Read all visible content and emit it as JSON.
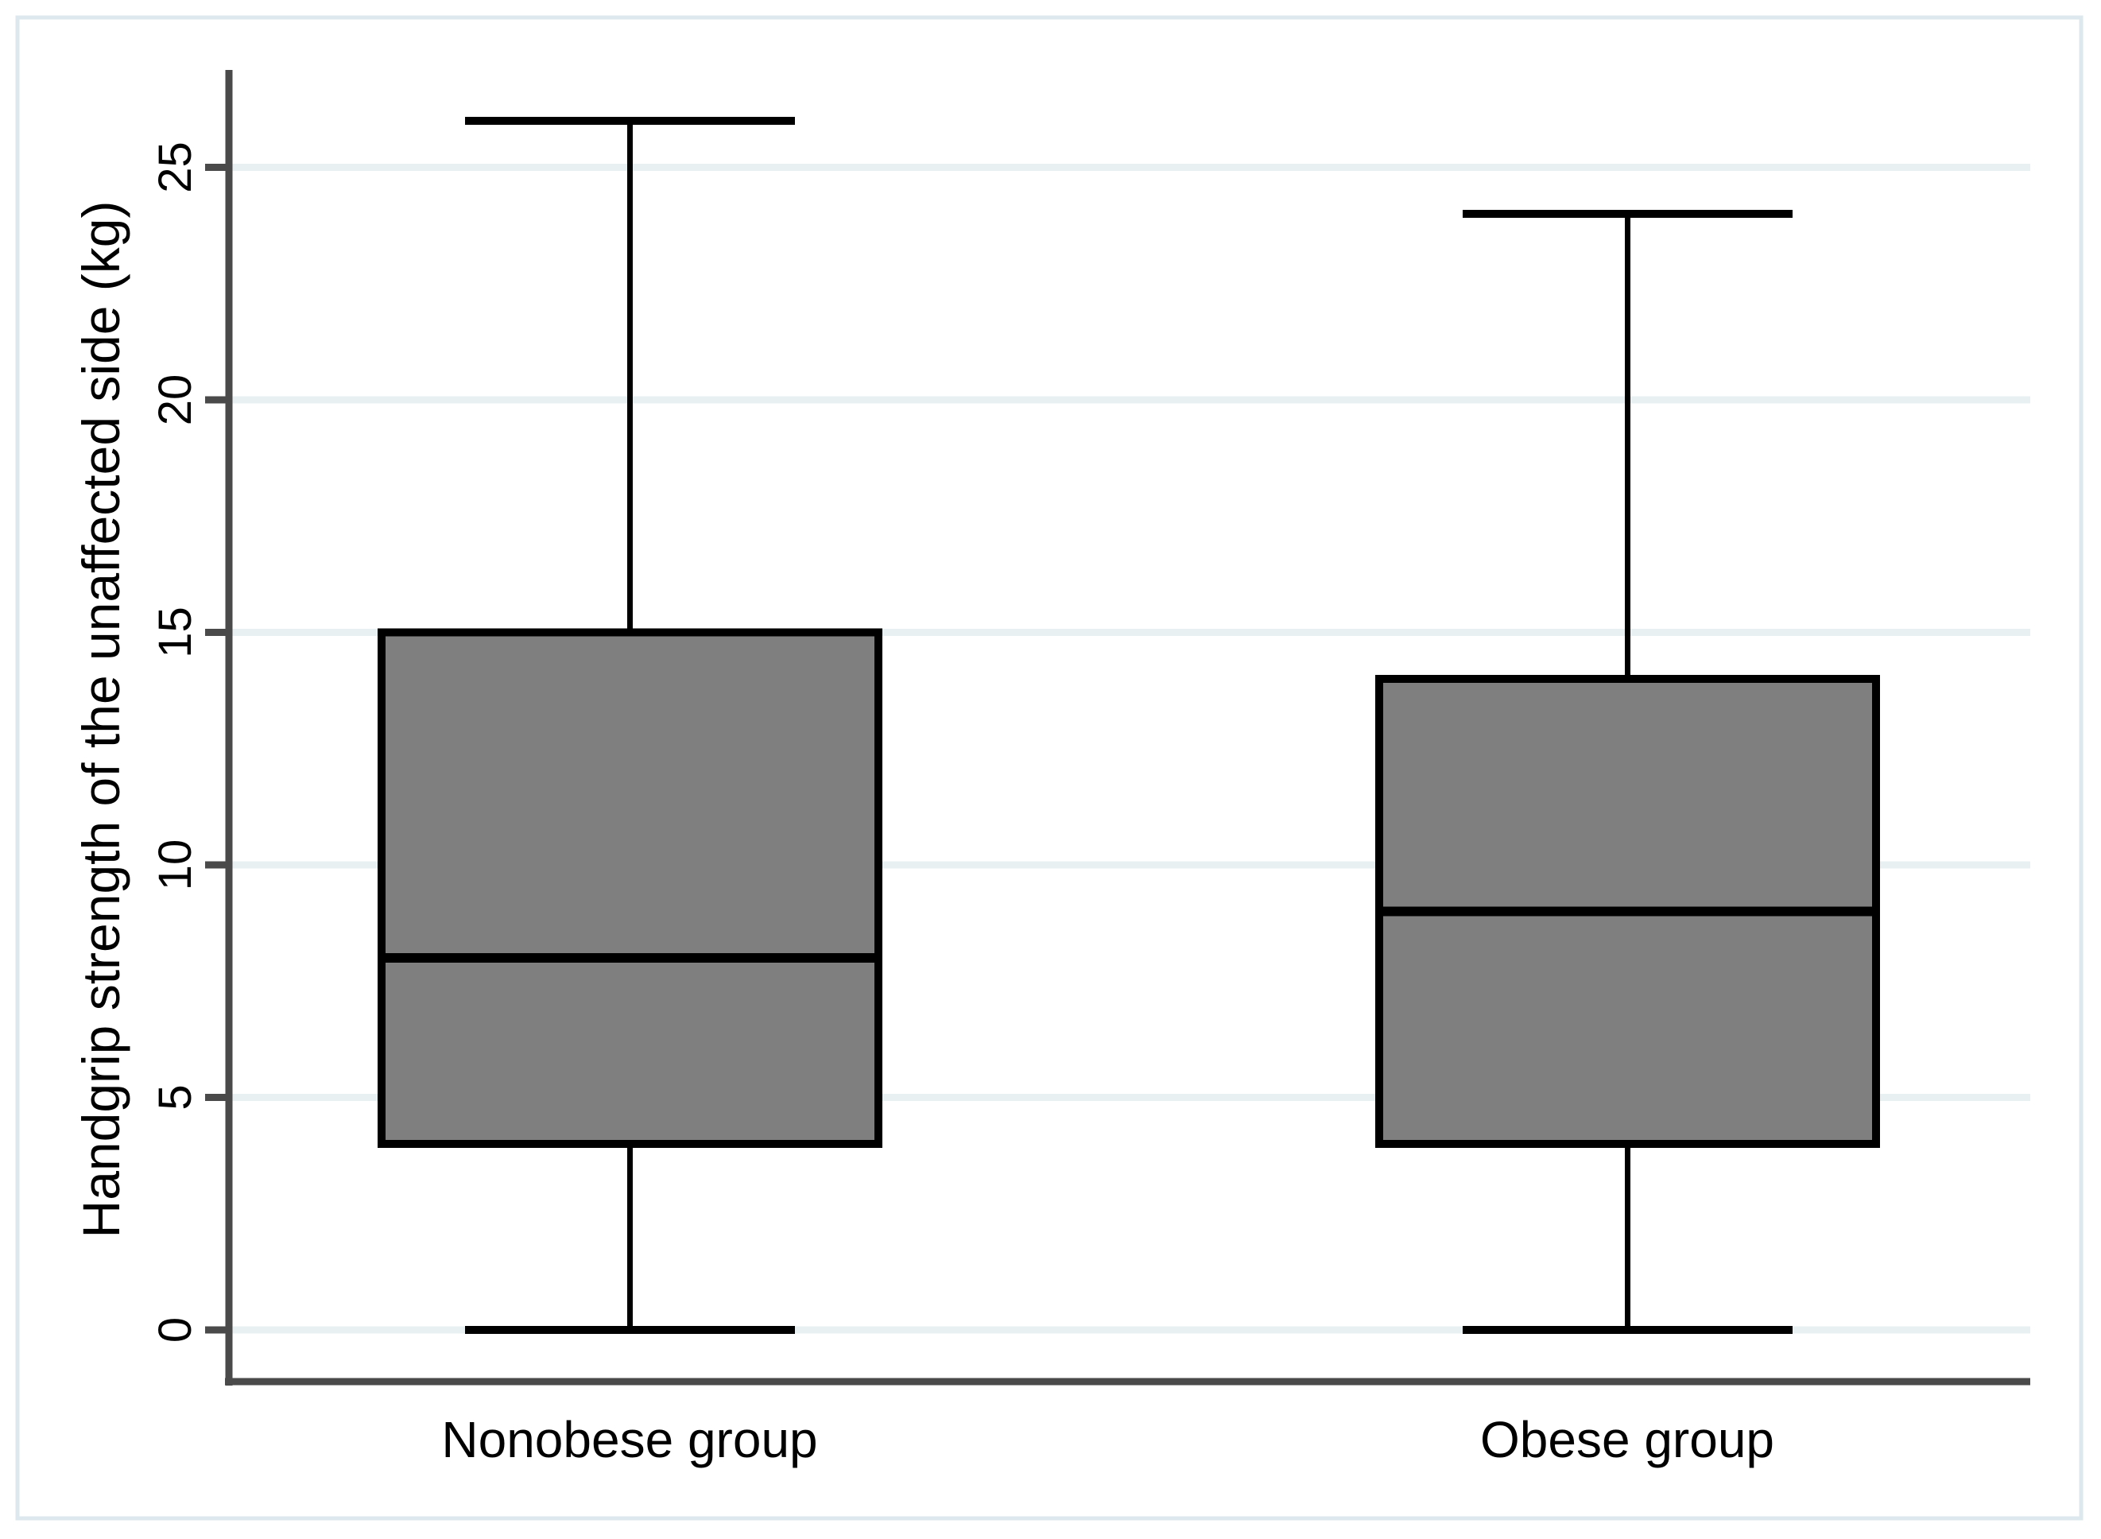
{
  "figure": {
    "background": "#ffffff",
    "frame_color": "#dce8ee"
  },
  "chart_data": {
    "type": "boxplot",
    "title": "",
    "xlabel": "",
    "y_axis_label": "Handgrip strength of the unaffected side (kg)",
    "categories": [
      "Nonobese group",
      "Obese group"
    ],
    "y_ticks": [
      0,
      5,
      10,
      15,
      20,
      25
    ],
    "y_range": [
      -1.1,
      27.1
    ],
    "grid": true,
    "legend": "none",
    "series": [
      {
        "name": "Nonobese group",
        "min": 0,
        "q1": 4,
        "median": 8,
        "q3": 15,
        "max": 26
      },
      {
        "name": "Obese group",
        "min": 0,
        "q1": 4,
        "median": 9,
        "q3": 14,
        "max": 24
      }
    ],
    "colors": {
      "box_fill": "#7f7f7f",
      "line": "#000000",
      "axis": "#4a4a4a",
      "grid": "#e9f0f1",
      "text": "#000000"
    }
  }
}
